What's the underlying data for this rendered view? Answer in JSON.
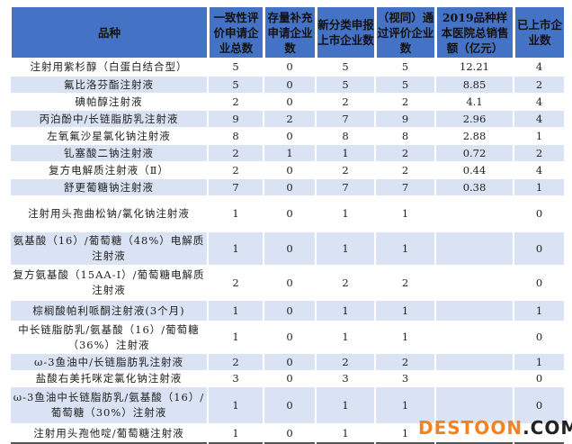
{
  "headers": [
    "品种",
    "一致性评价申请企业总数",
    "存量补充申请企业数",
    "新分类申报上市企业数",
    "（视同）通过评价企业数",
    "2019品种样本医院总销售额（亿元）",
    "已上市企业数"
  ],
  "rows": [
    [
      "注射用紫杉醇（白蛋白结合型）",
      "5",
      "0",
      "5",
      "5",
      "12.21",
      "4"
    ],
    [
      "氟比洛芬酯注射液",
      "5",
      "0",
      "5",
      "5",
      "8.85",
      "2"
    ],
    [
      "碘帕醇注射液",
      "2",
      "0",
      "2",
      "2",
      "4.1",
      "4"
    ],
    [
      "丙泊酚中/长链脂肪乳注射液",
      "9",
      "2",
      "7",
      "9",
      "2.96",
      "4"
    ],
    [
      "左氧氟沙星氯化钠注射液",
      "8",
      "0",
      "8",
      "8",
      "2.88",
      "1"
    ],
    [
      "钆塞酸二钠注射液",
      "2",
      "1",
      "1",
      "2",
      "0.72",
      "2"
    ],
    [
      "复方电解质注射液（Ⅱ）",
      "2",
      "0",
      "2",
      "2",
      "0.44",
      "4"
    ],
    [
      "舒更葡糖钠注射液",
      "7",
      "0",
      "7",
      "7",
      "0.38",
      "1"
    ],
    [
      "注射用头孢曲松钠/氯化钠注射液",
      "1",
      "0",
      "1",
      "1",
      "",
      "0"
    ],
    [
      "氨基酸（16）/葡萄糖（48%）电解质注射液",
      "1",
      "0",
      "1",
      "1",
      "",
      "0"
    ],
    [
      "复方氨基酸（15AA-I）/葡萄糖电解质注射液",
      "2",
      "0",
      "2",
      "2",
      "",
      "0"
    ],
    [
      "棕榈酸帕利哌酮注射液(3个月)",
      "1",
      "0",
      "1",
      "1",
      "",
      "1"
    ],
    [
      "中长链脂肪乳/氨基酸（16）/葡萄糖（36%）注射液",
      "1",
      "0",
      "1",
      "1",
      "",
      "0"
    ],
    [
      "ω-3鱼油中/长链脂肪乳注射液",
      "2",
      "0",
      "2",
      "2",
      "",
      "1"
    ],
    [
      "盐酸右美托咪定氯化钠注射液",
      "3",
      "0",
      "3",
      "3",
      "",
      "0"
    ],
    [
      "ω-3鱼油中长链脂肪乳/氨基酸（16）/葡萄糖（30%）注射液",
      "1",
      "0",
      "1",
      "1",
      "",
      "0"
    ],
    [
      "注射用头孢他啶/葡萄糖注射液",
      "1",
      "0",
      "1",
      "1",
      "",
      ""
    ]
  ],
  "watermark": {
    "part1": "DESTOON",
    "part2": ".COM"
  },
  "colors": {
    "header": "#4472c4",
    "alt_row": "#dae3f3",
    "watermark": "#f58220"
  }
}
